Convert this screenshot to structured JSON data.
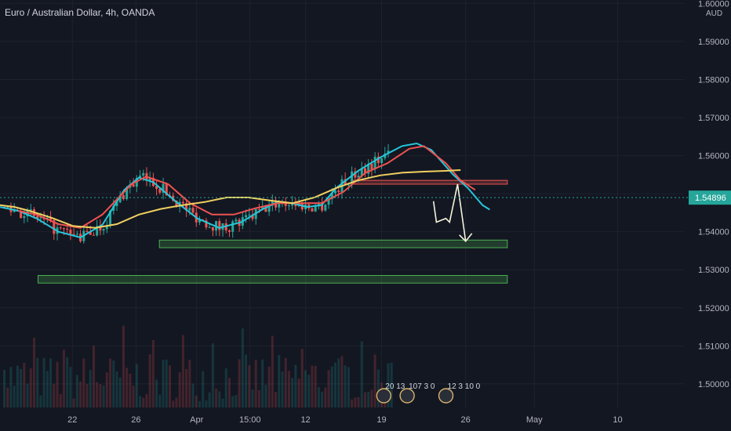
{
  "header": {
    "symbol": "Euro / Australian Dollar, 4h, OANDA",
    "currency": "AUD"
  },
  "colors": {
    "background": "#131722",
    "grid": "#1e222d",
    "text": "#b2b5be",
    "up": "#26a69a",
    "down": "#ef5350",
    "ema_fast": "#26c6da",
    "ema_mid": "#ef5350",
    "ema_slow": "#f0d060",
    "support": "#4caf50",
    "resistance": "#ef5350",
    "arrow": "#f5f5dc"
  },
  "chart_data": {
    "type": "candlestick",
    "instrument": "EUR/AUD",
    "timeframe": "4h",
    "source": "OANDA",
    "x_ticks": [
      "22",
      "26",
      "Apr",
      "15:00",
      "12",
      "19",
      "26",
      "May",
      "10"
    ],
    "y_ticks": [
      "1.60000",
      "1.59000",
      "1.58000",
      "1.57000",
      "1.56000",
      "1.55000",
      "1.54000",
      "1.53000",
      "1.52000",
      "1.51000",
      "1.50000"
    ],
    "ylim": [
      1.4938,
      1.6009
    ],
    "last_price": "1.54896",
    "zones": [
      {
        "kind": "resistance",
        "from": 1.5525,
        "to": 1.5535
      },
      {
        "kind": "support",
        "from": 1.5358,
        "to": 1.5378
      },
      {
        "kind": "support",
        "from": 1.5265,
        "to": 1.5285
      }
    ],
    "event_markers": [
      {
        "label": "20",
        "count": "13"
      },
      {
        "label": "107",
        "count": "3",
        "extra": "0"
      },
      {
        "label": "12",
        "count": "3",
        "extra": "10",
        "tail": "0"
      }
    ],
    "moving_averages": [
      {
        "color": "ema_fast",
        "points": [
          [
            1.5465,
            0
          ],
          [
            1.5455,
            0.025
          ],
          [
            1.5435,
            0.05
          ],
          [
            1.54,
            0.08
          ],
          [
            1.5385,
            0.11
          ],
          [
            1.5418,
            0.14
          ],
          [
            1.551,
            0.17
          ],
          [
            1.5542,
            0.19
          ],
          [
            1.553,
            0.21
          ],
          [
            1.548,
            0.24
          ],
          [
            1.5435,
            0.27
          ],
          [
            1.541,
            0.3
          ],
          [
            1.5425,
            0.33
          ],
          [
            1.546,
            0.36
          ],
          [
            1.5478,
            0.38
          ],
          [
            1.5475,
            0.4
          ],
          [
            1.5465,
            0.42
          ],
          [
            1.547,
            0.44
          ],
          [
            1.5515,
            0.46
          ],
          [
            1.556,
            0.49
          ],
          [
            1.5595,
            0.52
          ],
          [
            1.5625,
            0.55
          ],
          [
            1.5632,
            0.57
          ],
          [
            1.5615,
            0.59
          ],
          [
            1.555,
            0.62
          ],
          [
            1.5515,
            0.64
          ],
          [
            1.547,
            0.66
          ],
          [
            1.5458,
            0.67
          ]
        ]
      },
      {
        "color": "ema_mid",
        "points": [
          [
            1.5455,
            0.025
          ],
          [
            1.5445,
            0.05
          ],
          [
            1.542,
            0.08
          ],
          [
            1.541,
            0.11
          ],
          [
            1.5445,
            0.14
          ],
          [
            1.5525,
            0.18
          ],
          [
            1.5545,
            0.2
          ],
          [
            1.5525,
            0.23
          ],
          [
            1.5475,
            0.26
          ],
          [
            1.5445,
            0.29
          ],
          [
            1.5445,
            0.32
          ],
          [
            1.5462,
            0.35
          ],
          [
            1.5475,
            0.38
          ],
          [
            1.5475,
            0.41
          ],
          [
            1.5475,
            0.44
          ],
          [
            1.5505,
            0.47
          ],
          [
            1.5555,
            0.5
          ],
          [
            1.558,
            0.53
          ],
          [
            1.5618,
            0.56
          ],
          [
            1.5625,
            0.58
          ],
          [
            1.558,
            0.61
          ],
          [
            1.5535,
            0.63
          ],
          [
            1.551,
            0.65
          ]
        ]
      },
      {
        "color": "ema_slow",
        "points": [
          [
            1.547,
            0
          ],
          [
            1.5465,
            0.02
          ],
          [
            1.5455,
            0.04
          ],
          [
            1.5437,
            0.07
          ],
          [
            1.5415,
            0.1
          ],
          [
            1.541,
            0.13
          ],
          [
            1.542,
            0.16
          ],
          [
            1.5445,
            0.19
          ],
          [
            1.546,
            0.22
          ],
          [
            1.547,
            0.25
          ],
          [
            1.5478,
            0.28
          ],
          [
            1.549,
            0.31
          ],
          [
            1.549,
            0.34
          ],
          [
            1.5482,
            0.37
          ],
          [
            1.5475,
            0.4
          ],
          [
            1.549,
            0.43
          ],
          [
            1.5515,
            0.46
          ],
          [
            1.5535,
            0.49
          ],
          [
            1.5548,
            0.52
          ],
          [
            1.5555,
            0.55
          ],
          [
            1.5558,
            0.58
          ],
          [
            1.556,
            0.61
          ],
          [
            1.5562,
            0.63
          ]
        ]
      }
    ],
    "projection": [
      [
        1.548,
        0.593
      ],
      [
        1.5425,
        0.597
      ],
      [
        1.5435,
        0.61
      ],
      [
        1.5425,
        0.615
      ],
      [
        1.5525,
        0.626
      ],
      [
        1.5375,
        0.637
      ]
    ]
  }
}
